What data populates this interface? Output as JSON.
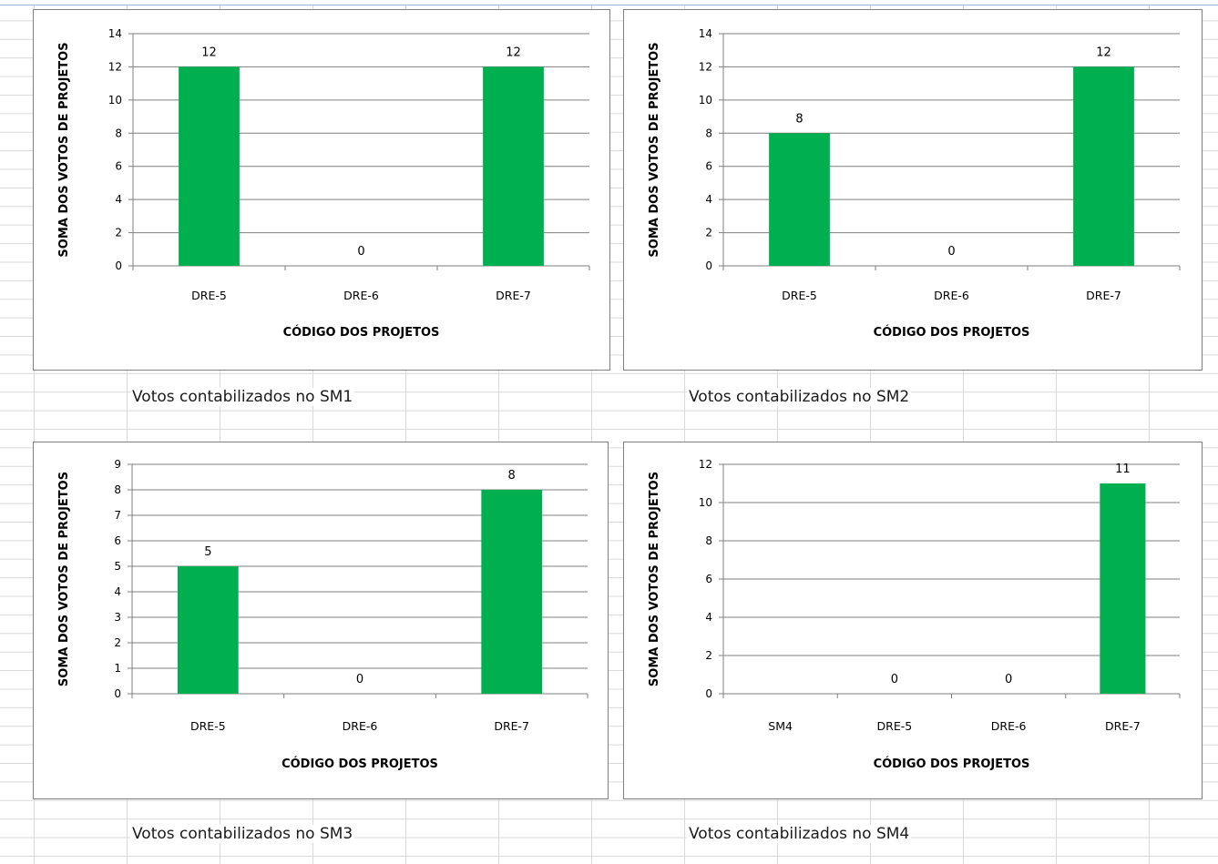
{
  "colors": {
    "bar": "#00b050",
    "gridline": "#7f7f7f",
    "axis": "#7f7f7f"
  },
  "charts": [
    {
      "caption": "Votos contabilizados no SM1"
    },
    {
      "caption": "Votos contabilizados no SM2"
    },
    {
      "caption": "Votos contabilizados no SM3"
    },
    {
      "caption": "Votos contabilizados no SM4"
    }
  ],
  "chart_data": [
    {
      "type": "bar",
      "categories": [
        "DRE-5",
        "DRE-6",
        "DRE-7"
      ],
      "values": [
        12,
        0,
        12
      ],
      "xlabel": "CÓDIGO DOS PROJETOS",
      "ylabel": "SOMA DOS VOTOS DE PROJETOS",
      "ylim": [
        0,
        14
      ],
      "ystep": 2,
      "data_labels": true,
      "grid": true
    },
    {
      "type": "bar",
      "categories": [
        "DRE-5",
        "DRE-6",
        "DRE-7"
      ],
      "values": [
        8,
        0,
        12
      ],
      "xlabel": "CÓDIGO DOS PROJETOS",
      "ylabel": "SOMA DOS VOTOS DE PROJETOS",
      "ylim": [
        0,
        14
      ],
      "ystep": 2,
      "data_labels": true,
      "grid": true
    },
    {
      "type": "bar",
      "categories": [
        "DRE-5",
        "DRE-6",
        "DRE-7"
      ],
      "values": [
        5,
        0,
        8
      ],
      "xlabel": "CÓDIGO DOS PROJETOS",
      "ylabel": "SOMA DOS VOTOS DE PROJETOS",
      "ylim": [
        0,
        9
      ],
      "ystep": 1,
      "data_labels": true,
      "grid": true
    },
    {
      "type": "bar",
      "categories": [
        "SM4",
        "DRE-5",
        "DRE-6",
        "DRE-7"
      ],
      "values": [
        null,
        0,
        0,
        11
      ],
      "xlabel": "CÓDIGO DOS PROJETOS",
      "ylabel": "SOMA DOS VOTOS DE PROJETOS",
      "ylim": [
        0,
        12
      ],
      "ystep": 2,
      "data_labels": true,
      "grid": true
    }
  ]
}
